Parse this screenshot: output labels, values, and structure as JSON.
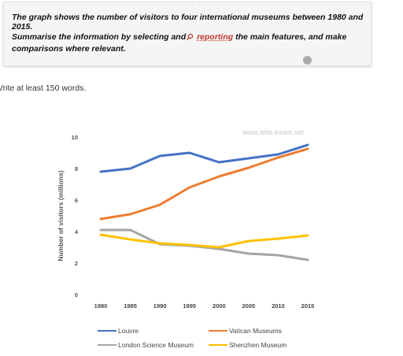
{
  "prompt": {
    "line1": "The graph shows the number of visitors to four international museums between 1980 and 2015.",
    "line2_before": "Summarise the information by selecting and",
    "line2_keyword": "reporting",
    "line2_after": " the main features, and make comparisons where relevant.",
    "search_icon": "search-icon"
  },
  "instruction": "Vrite at least 150 words.",
  "chart_data": {
    "type": "line",
    "title": "",
    "watermark": "www.ielts-exam.net",
    "xlabel": "",
    "ylabel": "Number of visitors (millions)",
    "x": [
      1980,
      1985,
      1990,
      1995,
      2000,
      2005,
      2010,
      2015
    ],
    "x_tick_labels": [
      "1980",
      "1985",
      "1990",
      "1995",
      "2000",
      "2005",
      "2010",
      "2015"
    ],
    "ylim": [
      0,
      10
    ],
    "y_ticks": [
      "0",
      "2",
      "4",
      "6",
      "8",
      "10"
    ],
    "grid": false,
    "legend_position": "bottom",
    "series": [
      {
        "name": "Louvre",
        "color": "#4472c4",
        "values": [
          7.8,
          8.0,
          8.8,
          9.0,
          8.4,
          8.65,
          8.9,
          9.5
        ]
      },
      {
        "name": "Vatican Museums",
        "color": "#ed7d31",
        "values": [
          4.8,
          5.1,
          5.7,
          6.8,
          7.5,
          8.05,
          8.7,
          9.25
        ]
      },
      {
        "name": "London Science Museum",
        "color": "#a5a5a5",
        "values": [
          4.1,
          4.1,
          3.2,
          3.1,
          2.9,
          2.6,
          2.5,
          2.2
        ]
      },
      {
        "name": "Shenzhen Museum",
        "color": "#ffc000",
        "values": [
          3.8,
          3.5,
          3.25,
          3.15,
          3.0,
          3.4,
          3.55,
          3.75
        ]
      }
    ]
  }
}
